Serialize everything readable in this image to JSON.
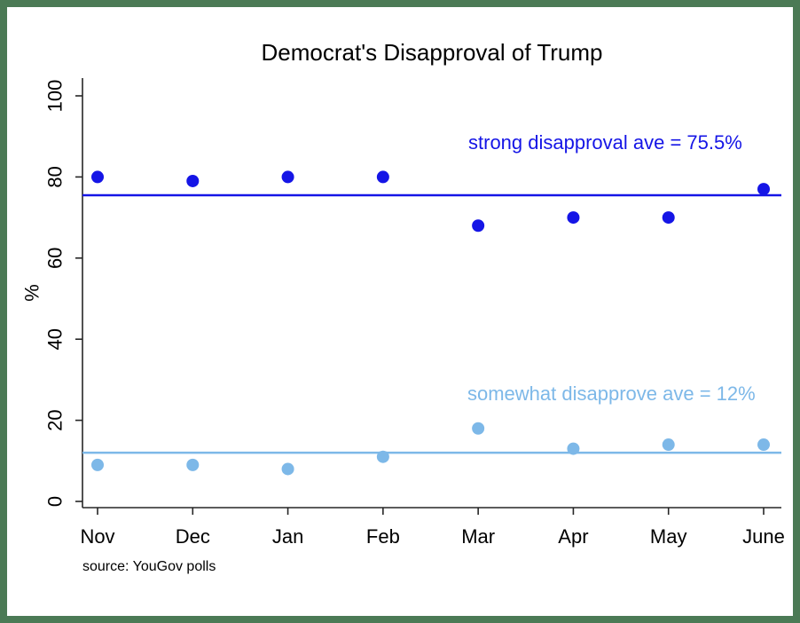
{
  "frame": {
    "border_color": "#4b7a55",
    "background": "#ffffff",
    "axis_color": "#262626",
    "text_color": "#000000"
  },
  "chart_data": {
    "type": "scatter",
    "title": "Democrat's Disapproval of Trump",
    "ylabel": "%",
    "xlabel": "",
    "categories": [
      "Nov",
      "Dec",
      "Jan",
      "Feb",
      "Mar",
      "Apr",
      "May",
      "June"
    ],
    "y_ticks": [
      0,
      20,
      40,
      60,
      80,
      100
    ],
    "ylim": [
      0,
      100
    ],
    "grid": false,
    "legend_position": "inline-annotations",
    "series": [
      {
        "name": "strong disapproval",
        "color": "#1515e6",
        "values": [
          80,
          79,
          80,
          80,
          68,
          70,
          70,
          77
        ],
        "average": 75.5,
        "average_line": true,
        "annotation": "strong disapproval ave = 75.5%"
      },
      {
        "name": "somewhat disapprove",
        "color": "#7db8e8",
        "values": [
          9,
          9,
          8,
          11,
          18,
          13,
          14,
          14
        ],
        "average": 12,
        "average_line": true,
        "annotation": "somewhat disapprove ave = 12%"
      }
    ],
    "source_note": "source: YouGov polls"
  }
}
